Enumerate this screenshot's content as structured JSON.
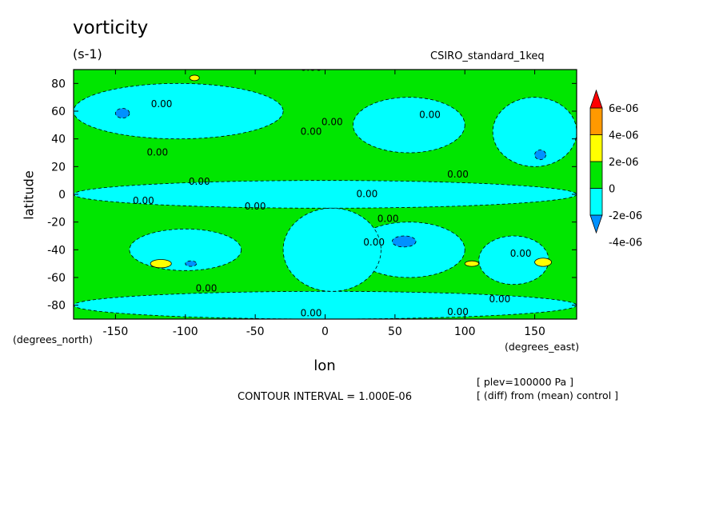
{
  "chart_data": {
    "type": "heatmap",
    "title": "vorticity",
    "units_label": "(s-1)",
    "dataset_label": "CSIRO_standard_1keq",
    "xlabel": "lon",
    "ylabel": "latitude",
    "x_units": "(degrees_east)",
    "y_units": "(degrees_north)",
    "xlim": [
      -180,
      180
    ],
    "ylim": [
      -90,
      90
    ],
    "x_ticks": [
      -150,
      -100,
      -50,
      0,
      50,
      100,
      150
    ],
    "x_tick_labels": [
      "-150",
      "-100",
      "-50",
      "0",
      "50",
      "100",
      "150"
    ],
    "y_ticks": [
      80,
      60,
      40,
      20,
      0,
      -20,
      -40,
      -60,
      -80
    ],
    "y_tick_labels": [
      "80",
      "60",
      "40",
      "20",
      "0",
      "-20",
      "-40",
      "-60",
      "-80"
    ],
    "contour_interval_text": "CONTOUR INTERVAL = 1.000E-06",
    "contour_line_label": "0.00",
    "metadata_lines": [
      "[ plev=100000 Pa ]",
      "[ (diff) from (mean) control ]"
    ],
    "legend": {
      "levels": [
        {
          "label": "6e-06",
          "value": 6e-06
        },
        {
          "label": "4e-06",
          "value": 4e-06
        },
        {
          "label": "2e-06",
          "value": 2e-06
        },
        {
          "label": "0",
          "value": 0
        },
        {
          "label": "-2e-06",
          "value": -2e-06
        },
        {
          "label": "-4e-06",
          "value": -4e-06
        }
      ],
      "colors": [
        "#0091ff",
        "#00ffff",
        "#00e600",
        "#ffff00",
        "#ff9900",
        "#ff0000"
      ],
      "bins": [
        {
          "from": null,
          "to": -4e-06,
          "color": "#0091ff"
        },
        {
          "from": -4e-06,
          "to": -2e-06,
          "color": "#0091ff"
        },
        {
          "from": -2e-06,
          "to": 0,
          "color": "#00ffff"
        },
        {
          "from": 0,
          "to": 2e-06,
          "color": "#00e600"
        },
        {
          "from": 2e-06,
          "to": 4e-06,
          "color": "#ffff00"
        },
        {
          "from": 4e-06,
          "to": 6e-06,
          "color": "#ff9900"
        },
        {
          "from": 6e-06,
          "to": null,
          "color": "#ff0000"
        }
      ]
    },
    "field_regions": [
      {
        "kind": "positive",
        "color": "#00e600",
        "lon": [
          -180,
          180
        ],
        "lat": [
          -90,
          90
        ]
      },
      {
        "kind": "negative",
        "color": "#00ffff",
        "lon": [
          -180,
          -30
        ],
        "lat": [
          40,
          80
        ]
      },
      {
        "kind": "negative",
        "color": "#00ffff",
        "lon": [
          20,
          100
        ],
        "lat": [
          30,
          70
        ]
      },
      {
        "kind": "negative",
        "color": "#00ffff",
        "lon": [
          120,
          180
        ],
        "lat": [
          20,
          70
        ]
      },
      {
        "kind": "negative",
        "color": "#00ffff",
        "lon": [
          -180,
          180
        ],
        "lat": [
          -10,
          10
        ]
      },
      {
        "kind": "negative",
        "color": "#00ffff",
        "lon": [
          -180,
          180
        ],
        "lat": [
          -90,
          -70
        ]
      },
      {
        "kind": "negative",
        "color": "#00ffff",
        "lon": [
          -140,
          -60
        ],
        "lat": [
          -55,
          -25
        ]
      },
      {
        "kind": "negative",
        "color": "#00ffff",
        "lon": [
          20,
          100
        ],
        "lat": [
          -60,
          -20
        ]
      },
      {
        "kind": "negative",
        "color": "#00ffff",
        "lon": [
          -30,
          40
        ],
        "lat": [
          -70,
          -10
        ]
      },
      {
        "kind": "negative",
        "color": "#00ffff",
        "lon": [
          110,
          160
        ],
        "lat": [
          -65,
          -30
        ]
      },
      {
        "kind": "strong-negative",
        "color": "#0091ff",
        "lon": [
          -150,
          -140
        ],
        "lat": [
          55,
          62
        ]
      },
      {
        "kind": "strong-negative",
        "color": "#0091ff",
        "lon": [
          48,
          65
        ],
        "lat": [
          -38,
          -30
        ]
      },
      {
        "kind": "strong-negative",
        "color": "#0091ff",
        "lon": [
          150,
          158
        ],
        "lat": [
          25,
          32
        ]
      },
      {
        "kind": "strong-negative",
        "color": "#0091ff",
        "lon": [
          -100,
          -92
        ],
        "lat": [
          -52,
          -48
        ]
      },
      {
        "kind": "strong-positive",
        "color": "#ffff00",
        "lon": [
          -125,
          -110
        ],
        "lat": [
          -53,
          -47
        ]
      },
      {
        "kind": "strong-positive",
        "color": "#ffff00",
        "lon": [
          150,
          162
        ],
        "lat": [
          -52,
          -46
        ]
      },
      {
        "kind": "strong-positive",
        "color": "#ffff00",
        "lon": [
          -97,
          -90
        ],
        "lat": [
          82,
          86
        ]
      },
      {
        "kind": "strong-positive",
        "color": "#ffff00",
        "lon": [
          100,
          110
        ],
        "lat": [
          -52,
          -48
        ]
      }
    ],
    "contour_label_positions": [
      {
        "lon": -117,
        "lat": 63
      },
      {
        "lon": 5,
        "lat": 50
      },
      {
        "lon": -10,
        "lat": 43
      },
      {
        "lon": 75,
        "lat": 55
      },
      {
        "lon": -120,
        "lat": 28
      },
      {
        "lon": -90,
        "lat": 7
      },
      {
        "lon": 95,
        "lat": 12
      },
      {
        "lon": 30,
        "lat": -2
      },
      {
        "lon": -130,
        "lat": -7
      },
      {
        "lon": -50,
        "lat": -11
      },
      {
        "lon": 45,
        "lat": -20
      },
      {
        "lon": 35,
        "lat": -37
      },
      {
        "lon": 140,
        "lat": -45
      },
      {
        "lon": -85,
        "lat": -70
      },
      {
        "lon": 125,
        "lat": -78
      },
      {
        "lon": -10,
        "lat": -88
      },
      {
        "lon": 95,
        "lat": -87
      },
      {
        "lon": -10,
        "lat": 89
      }
    ]
  }
}
